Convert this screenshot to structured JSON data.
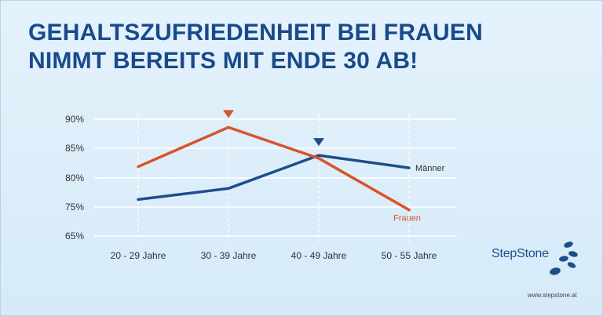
{
  "title_lines": [
    "GEHALTSZUFRIEDENHEIT BEI FRAUEN",
    "NIMMT BEREITS MIT ENDE 30 AB!"
  ],
  "brand": {
    "name": "StepStone",
    "url": "www.stepstone.at"
  },
  "colors": {
    "maenner": "#1d4e89",
    "frauen": "#d8532a",
    "title": "#1a4a8a",
    "grid": "#ffffff"
  },
  "chart_data": {
    "type": "line",
    "categories": [
      "20  - 29 Jahre",
      "30  - 39 Jahre",
      "40  - 49 Jahre",
      "50  - 55 Jahre"
    ],
    "y_ticks": [
      65,
      75,
      80,
      85,
      90
    ],
    "y_tick_labels": [
      "65%",
      "75%",
      "80%",
      "85%",
      "90%"
    ],
    "y_unit": "%",
    "series": [
      {
        "name": "Männer",
        "values": [
          76.3,
          78.2,
          83.8,
          81.7
        ],
        "peak_index": 2,
        "peak_marker": "triangle-down"
      },
      {
        "name": "Frauen",
        "values": [
          81.9,
          88.6,
          83.3,
          74.0
        ],
        "peak_index": 1,
        "peak_marker": "triangle-down"
      }
    ],
    "grid": true,
    "legend": "labels at line ends"
  }
}
